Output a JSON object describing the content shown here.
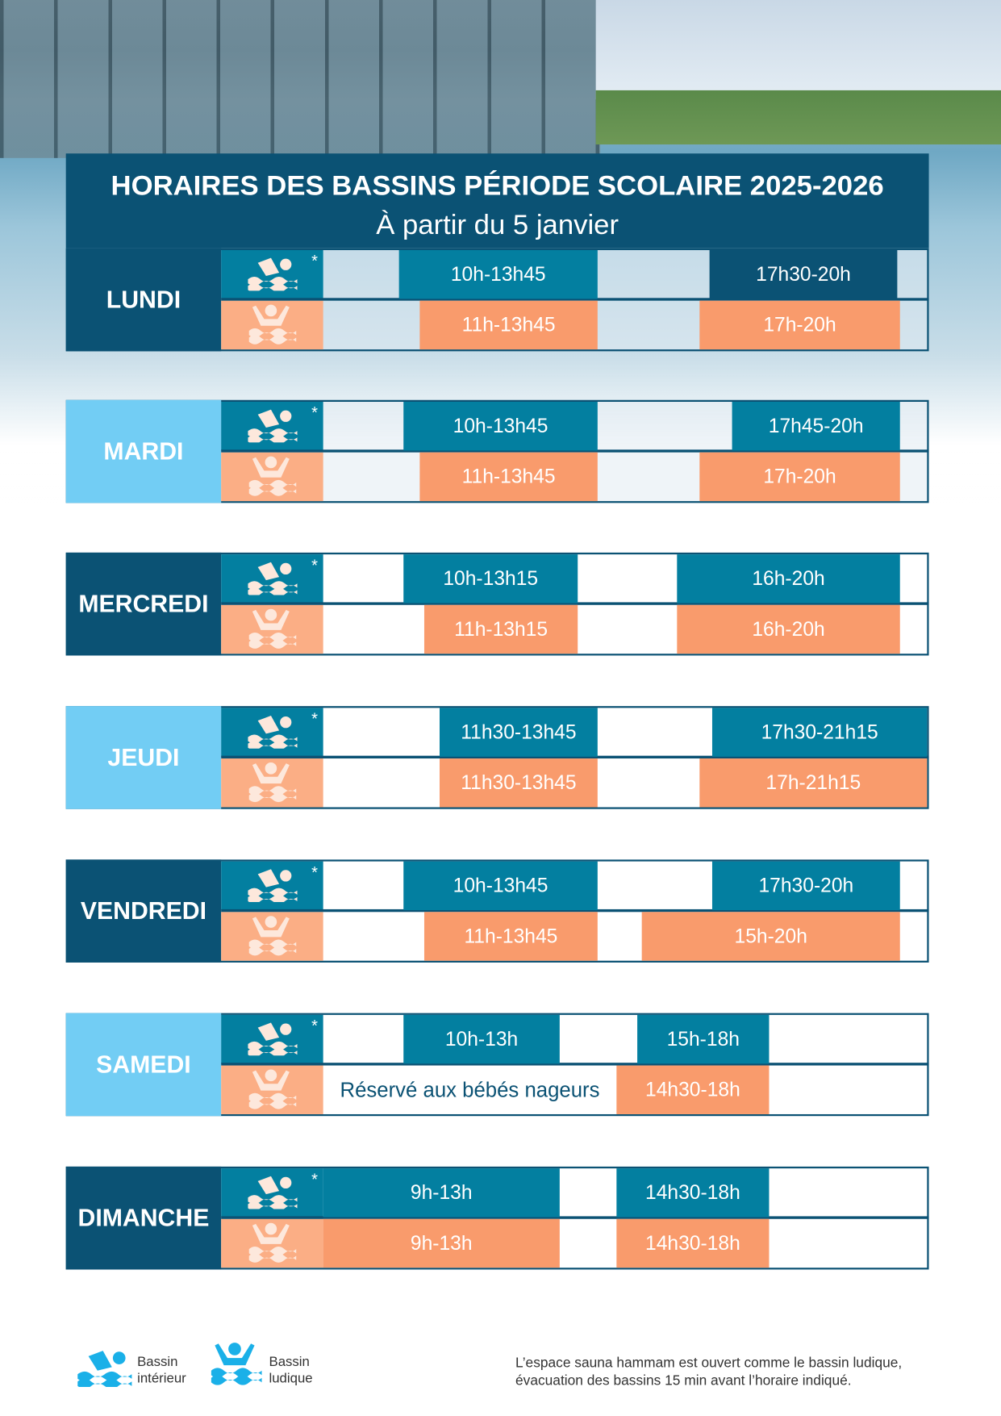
{
  "header": {
    "title": "HORAIRES DES BASSINS PÉRIODE SCOLAIRE 2025-2026",
    "subtitle": "À partir du 5 janvier"
  },
  "star": "*",
  "colors": {
    "navy": "#0b5274",
    "teal": "#037fa0",
    "light_blue": "#72cdf4",
    "orange": "#f99b6c",
    "light_orange": "#fbae85",
    "legend_blue": "#1ab0e8"
  },
  "days": [
    {
      "name": "LUNDI",
      "interior": [
        "10h-13h45",
        "17h30-20h"
      ],
      "ludique": [
        "11h-13h45",
        "17h-20h"
      ]
    },
    {
      "name": "MARDI",
      "interior": [
        "10h-13h45",
        "17h45-20h"
      ],
      "ludique": [
        "11h-13h45",
        "17h-20h"
      ]
    },
    {
      "name": "MERCREDI",
      "interior": [
        "10h-13h15",
        "16h-20h"
      ],
      "ludique": [
        "11h-13h15",
        "16h-20h"
      ]
    },
    {
      "name": "JEUDI",
      "interior": [
        "11h30-13h45",
        "17h30-21h15"
      ],
      "ludique": [
        "11h30-13h45",
        "17h-21h15"
      ]
    },
    {
      "name": "VENDREDI",
      "interior": [
        "10h-13h45",
        "17h30-20h"
      ],
      "ludique": [
        "11h-13h45",
        "15h-20h"
      ]
    },
    {
      "name": "SAMEDI",
      "interior": [
        "10h-13h",
        "15h-18h"
      ],
      "ludique": [
        "Réservé aux bébés nageurs",
        "14h30-18h"
      ]
    },
    {
      "name": "DIMANCHE",
      "interior": [
        "9h-13h",
        "14h30-18h"
      ],
      "ludique": [
        "9h-13h",
        "14h30-18h"
      ]
    }
  ],
  "legend": {
    "interior_line1": "Bassin",
    "interior_line2": "intérieur",
    "ludique_line1": "Bassin",
    "ludique_line2": "ludique"
  },
  "footnote": {
    "line1": "L’espace sauna hammam est ouvert comme le bassin ludique,",
    "line2": "évacuation des bassins 15 min avant l’horaire indiqué."
  }
}
